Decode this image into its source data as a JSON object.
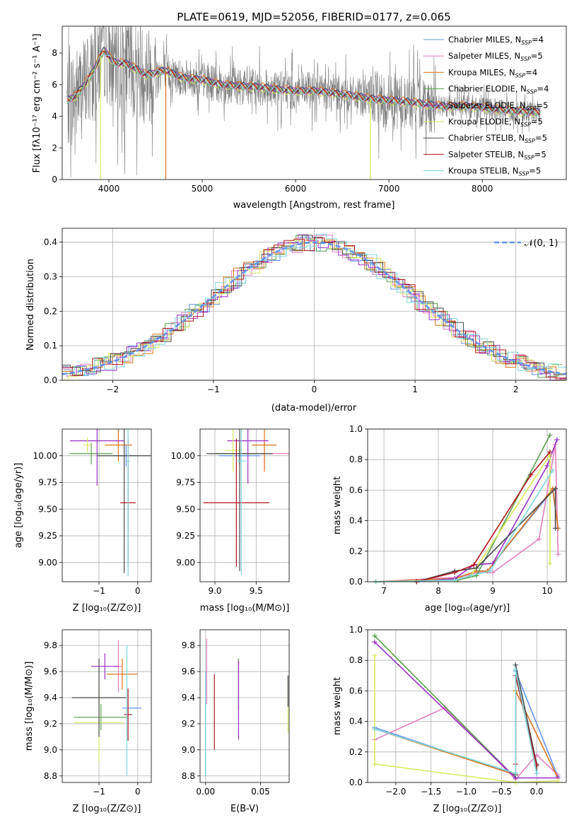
{
  "colors": {
    "c_blue": "#6495ed",
    "c_pink": "#e47fbd",
    "c_orange": "#d9751f",
    "c_green": "#5a9f4f",
    "c_purple": "#9b2fc9",
    "c_yellow": "#d8e85c",
    "c_dark": "#4a4a4a",
    "c_red": "#b0151d",
    "c_cyan": "#7fd7db",
    "data_gray": "#7f7f7f",
    "gauss": "#6495ed"
  },
  "legend_entries": [
    {
      "name": "Chabrier MILES",
      "nssp": "4",
      "color": "#6495ed"
    },
    {
      "name": "Salpeter MILES",
      "nssp": "5",
      "color": "#e47fbd"
    },
    {
      "name": "Kroupa MILES",
      "nssp": "4",
      "color": "#d9751f"
    },
    {
      "name": "Chabrier ELODIE",
      "nssp": "4",
      "color": "#5a9f4f"
    },
    {
      "name": "Salpeter ELODIE",
      "nssp": "5",
      "color": "#9b2fc9"
    },
    {
      "name": "Kroupa ELODIE",
      "nssp": "5",
      "color": "#d8e85c"
    },
    {
      "name": "Chabrier STELIB",
      "nssp": "5",
      "color": "#4a4a4a"
    },
    {
      "name": "Salpeter STELIB",
      "nssp": "5",
      "color": "#b0151d"
    },
    {
      "name": "Kroupa STELIB",
      "nssp": "5",
      "color": "#7fd7db"
    }
  ],
  "chart_data": [
    {
      "type": "line",
      "title": "PLATE=0619, MJD=52056, FIBERID=0177, z=0.065",
      "xlabel": "wavelength [Angstrom, rest frame]",
      "ylabel": "Flux [fλ10⁻¹⁷ erg cm⁻² s⁻¹ A⁻¹]",
      "xlim": [
        3500,
        8900
      ],
      "ylim": [
        0,
        9.7
      ],
      "xticks": [
        "4000",
        "5000",
        "6000",
        "7000",
        "8000"
      ],
      "yticks": [
        "0",
        "2",
        "4",
        "6",
        "8"
      ],
      "legend_loc": "upper right",
      "model_continuum": {
        "x": [
          3550,
          3650,
          3800,
          3950,
          4050,
          4200,
          4400,
          4600,
          4800,
          5000,
          5200,
          5400,
          5600,
          5800,
          6000,
          6200,
          6400,
          6600,
          6800,
          7000,
          7200,
          7400,
          7600,
          7800,
          8000,
          8200,
          8400,
          8600
        ],
        "y": [
          5.0,
          5.3,
          6.5,
          8.2,
          7.4,
          7.3,
          6.6,
          6.9,
          6.4,
          6.3,
          6.0,
          5.9,
          5.85,
          5.7,
          5.6,
          5.6,
          5.45,
          5.3,
          5.1,
          5.0,
          4.9,
          4.75,
          4.6,
          4.65,
          4.55,
          4.4,
          4.3,
          4.25
        ]
      }
    },
    {
      "type": "line",
      "title": "",
      "xlabel": "(data-model)/error",
      "ylabel": "Normed distribution",
      "xlim": [
        -2.5,
        2.5
      ],
      "ylim": [
        0,
        0.44
      ],
      "xticks": [
        "−2",
        "−1",
        "0",
        "1",
        "2"
      ],
      "yticks": [
        "0.0",
        "0.1",
        "0.2",
        "0.3",
        "0.4"
      ],
      "legend_label": "𝒩(0, 1)",
      "legend_loc": "upper right",
      "gaussian": {
        "mu": 0,
        "sigma": 1
      }
    },
    {
      "type": "scatter",
      "xlabel": "Z [log₁₀(Z/Z⊙)]",
      "ylabel": "age  [log₁₀(age/yr)]",
      "xlim": [
        -1.95,
        0.35
      ],
      "ylim": [
        8.82,
        10.25
      ],
      "xticks": [
        "−1",
        "0"
      ],
      "yticks": [
        "9.00",
        "9.25",
        "9.50",
        "9.75",
        "10.00"
      ],
      "points": [
        {
          "color": "#6495ed",
          "x": -0.3,
          "y": 10.0,
          "xerr": 0.4,
          "yerr": 0.1
        },
        {
          "color": "#e47fbd",
          "x": -0.5,
          "y": 10.14,
          "xerr": 0.1,
          "yerr": 0.03
        },
        {
          "color": "#d9751f",
          "x": -0.5,
          "y": 10.1,
          "xerr": 0.35,
          "yerr": 0.15
        },
        {
          "color": "#5a9f4f",
          "x": -1.2,
          "y": 10.02,
          "xerr": 0.55,
          "yerr": 0.1
        },
        {
          "color": "#9b2fc9",
          "x": -1.05,
          "y": 10.14,
          "xerr": 0.7,
          "yerr": 0.42
        },
        {
          "color": "#d8e85c",
          "x": -1.3,
          "y": 10.1,
          "xerr": 0.1,
          "yerr": 0.07
        },
        {
          "color": "#4a4a4a",
          "x": -0.35,
          "y": 10.0,
          "xerr": 0.7,
          "yerr": 1.1
        },
        {
          "color": "#b0151d",
          "x": -0.25,
          "y": 9.56,
          "xerr": 0.2,
          "yerr": 0.6
        },
        {
          "color": "#7fd7db",
          "x": -0.25,
          "y": 9.95,
          "xerr": 0.05,
          "yerr": 1.08
        }
      ]
    },
    {
      "type": "scatter",
      "xlabel": "mass [log₁₀(M/M⊙)]",
      "ylabel": "",
      "xlim": [
        8.82,
        9.9
      ],
      "ylim": [
        8.82,
        10.25
      ],
      "xticks": [
        "9.0",
        "9.5"
      ],
      "yticks": [
        "9.00",
        "9.25",
        "9.50",
        "9.75",
        "10.00"
      ],
      "points": [
        {
          "color": "#6495ed",
          "x": 9.3,
          "y": 10.0,
          "xerr": 0.25,
          "yerr": 0.1
        },
        {
          "color": "#e47fbd",
          "x": 9.6,
          "y": 10.02,
          "xerr": 0.35,
          "yerr": 0.14
        },
        {
          "color": "#d9751f",
          "x": 9.6,
          "y": 10.1,
          "xerr": 0.15,
          "yerr": 0.25
        },
        {
          "color": "#5a9f4f",
          "x": 9.3,
          "y": 10.02,
          "xerr": 0.3,
          "yerr": 0.1
        },
        {
          "color": "#9b2fc9",
          "x": 9.4,
          "y": 10.14,
          "xerr": 0.25,
          "yerr": 0.4
        },
        {
          "color": "#d8e85c",
          "x": 9.22,
          "y": 10.05,
          "xerr": 0.1,
          "yerr": 0.2
        },
        {
          "color": "#4a4a4a",
          "x": 9.3,
          "y": 10.02,
          "xerr": 0.4,
          "yerr": 1.1
        },
        {
          "color": "#b0151d",
          "x": 9.26,
          "y": 9.56,
          "xerr": 0.4,
          "yerr": 0.6
        },
        {
          "color": "#7fd7db",
          "x": 9.32,
          "y": 9.95,
          "xerr": 0.06,
          "yerr": 1.07
        }
      ]
    },
    {
      "type": "line",
      "xlabel": "age  [log₁₀(age/yr)]",
      "ylabel": "mass weight",
      "xlim": [
        6.7,
        10.35
      ],
      "ylim": [
        0,
        1.0
      ],
      "xticks": [
        "7",
        "8",
        "9",
        "10"
      ],
      "yticks": [
        "0.0",
        "0.2",
        "0.4",
        "0.6",
        "0.8",
        "1.0"
      ],
      "series": [
        {
          "color": "#6495ed",
          "x": [
            6.85,
            8.3,
            8.7,
            8.9,
            10.1,
            10.2
          ],
          "y": [
            0.0,
            0.02,
            0.07,
            0.07,
            0.6,
            0.35
          ]
        },
        {
          "color": "#e47fbd",
          "x": [
            6.85,
            8.4,
            8.7,
            9.0,
            9.85,
            10.15,
            10.2
          ],
          "y": [
            0.0,
            0.03,
            0.06,
            0.06,
            0.28,
            0.9,
            0.18
          ]
        },
        {
          "color": "#d9751f",
          "x": [
            6.85,
            8.3,
            8.7,
            8.9,
            10.1,
            10.2
          ],
          "y": [
            0.0,
            0.02,
            0.07,
            0.07,
            0.61,
            0.35
          ]
        },
        {
          "color": "#5a9f4f",
          "x": [
            6.85,
            8.35,
            8.7,
            10.05
          ],
          "y": [
            0.0,
            0.01,
            0.04,
            0.96
          ]
        },
        {
          "color": "#9b2fc9",
          "x": [
            7.6,
            8.3,
            8.65,
            9.0,
            10.0,
            10.18
          ],
          "y": [
            0.0,
            0.02,
            0.11,
            0.12,
            0.76,
            0.93
          ]
        },
        {
          "color": "#d8e85c",
          "x": [
            6.85,
            8.3,
            8.6,
            10.05,
            10.05
          ],
          "y": [
            0.0,
            0.01,
            0.04,
            0.83,
            0.12
          ]
        },
        {
          "color": "#4a4a4a",
          "x": [
            7.6,
            8.3,
            8.7,
            10.15,
            10.15
          ],
          "y": [
            0.0,
            0.07,
            0.09,
            0.61,
            0.35
          ]
        },
        {
          "color": "#b0151d",
          "x": [
            7.6,
            8.3,
            8.65,
            9.7,
            10.05
          ],
          "y": [
            0.0,
            0.06,
            0.11,
            0.7,
            0.85
          ]
        },
        {
          "color": "#7fd7db",
          "x": [
            6.85,
            8.3,
            8.6,
            8.95,
            10.1
          ],
          "y": [
            0.0,
            0.01,
            0.04,
            0.07,
            0.73
          ]
        }
      ]
    },
    {
      "type": "scatter",
      "xlabel": "Z [log₁₀(Z/Z⊙)]",
      "ylabel": "mass [log₁₀(M/M⊙)]",
      "xlim": [
        -1.95,
        0.35
      ],
      "ylim": [
        8.75,
        9.92
      ],
      "xticks": [
        "−1",
        "0"
      ],
      "yticks": [
        "8.8",
        "9.0",
        "9.2",
        "9.4",
        "9.6",
        "9.8"
      ],
      "points": [
        {
          "color": "#6495ed",
          "x": -0.15,
          "y": 9.32,
          "xerr": 0.25,
          "yerr": 0.0
        },
        {
          "color": "#e47fbd",
          "x": -0.5,
          "y": 9.64,
          "xerr": 0.1,
          "yerr": 0.2
        },
        {
          "color": "#d9751f",
          "x": -0.4,
          "y": 9.58,
          "xerr": 0.4,
          "yerr": 0.12
        },
        {
          "color": "#5a9f4f",
          "x": -0.95,
          "y": 9.25,
          "xerr": 0.7,
          "yerr": 0.1
        },
        {
          "color": "#9b2fc9",
          "x": -0.85,
          "y": 9.64,
          "xerr": 0.35,
          "yerr": 0.1
        },
        {
          "color": "#d8e85c",
          "x": -1.0,
          "y": 9.21,
          "xerr": 0.65,
          "yerr": 0.3
        },
        {
          "color": "#4a4a4a",
          "x": -1.0,
          "y": 9.4,
          "xerr": 0.7,
          "yerr": 0.3
        },
        {
          "color": "#b0151d",
          "x": -0.25,
          "y": 9.27,
          "xerr": 0.1,
          "yerr": 0.2
        },
        {
          "color": "#7fd7db",
          "x": -0.28,
          "y": 9.3,
          "xerr": 0.02,
          "yerr": 0.5
        }
      ]
    },
    {
      "type": "scatter",
      "xlabel": "E(B-V)",
      "ylabel": "",
      "xlim": [
        -0.005,
        0.076
      ],
      "ylim": [
        8.75,
        9.92
      ],
      "xticks": [
        "0.00",
        "0.05"
      ],
      "yticks": [
        "8.8",
        "9.0",
        "9.2",
        "9.4",
        "9.6",
        "9.8"
      ],
      "points": [
        {
          "color": "#6495ed",
          "x": 0.0,
          "y": 9.2,
          "xerr": 0,
          "yerr": 0.4
        },
        {
          "color": "#e47fbd",
          "x": 0.001,
          "y": 9.6,
          "xerr": 0,
          "yerr": 0.25
        },
        {
          "color": "#d9751f",
          "x": 0.03,
          "y": 9.5,
          "xerr": 0,
          "yerr": 0.2
        },
        {
          "color": "#5a9f4f",
          "x": 0.03,
          "y": 9.5,
          "xerr": 0,
          "yerr": 0.2
        },
        {
          "color": "#9b2fc9",
          "x": 0.03,
          "y": 9.38,
          "xerr": 0,
          "yerr": 0.3
        },
        {
          "color": "#d8e85c",
          "x": 0.075,
          "y": 9.35,
          "xerr": 0,
          "yerr": 0.22
        },
        {
          "color": "#4a4a4a",
          "x": 0.075,
          "y": 9.45,
          "xerr": 0,
          "yerr": 0.12
        },
        {
          "color": "#b0151d",
          "x": 0.008,
          "y": 9.29,
          "xerr": 0,
          "yerr": 0.29
        },
        {
          "color": "#7fd7db",
          "x": 0.0,
          "y": 9.2,
          "xerr": 0,
          "yerr": 0.4
        }
      ]
    },
    {
      "type": "line",
      "xlabel": "Z [log₁₀(Z/Z⊙)]",
      "ylabel": "mass weight",
      "xlim": [
        -2.4,
        0.42
      ],
      "ylim": [
        0,
        1.0
      ],
      "xticks": [
        "−2.0",
        "−1.5",
        "−1.0",
        "−0.5",
        "0.0"
      ],
      "yticks": [
        "0.0",
        "0.2",
        "0.4",
        "0.6",
        "0.8",
        "1.0"
      ],
      "series": [
        {
          "color": "#6495ed",
          "x": [
            -2.3,
            -0.3,
            -0.3,
            0.3
          ],
          "y": [
            0.36,
            0.05,
            0.73,
            0.04
          ]
        },
        {
          "color": "#e47fbd",
          "x": [
            -2.3,
            -1.3,
            -0.3,
            0.0,
            0.3
          ],
          "y": [
            0.28,
            0.49,
            0.02,
            0.18,
            0.05
          ]
        },
        {
          "color": "#d9751f",
          "x": [
            -2.3,
            -0.3,
            -0.3,
            0.3
          ],
          "y": [
            0.35,
            0.05,
            0.6,
            0.03
          ]
        },
        {
          "color": "#5a9f4f",
          "x": [
            -2.3,
            -0.3
          ],
          "y": [
            0.96,
            0.03
          ]
        },
        {
          "color": "#9b2fc9",
          "x": [
            -2.3,
            -0.3,
            0.3
          ],
          "y": [
            0.92,
            0.03,
            0.03
          ]
        },
        {
          "color": "#d8e85c",
          "x": [
            -2.3,
            -2.3,
            -0.3,
            0.3
          ],
          "y": [
            0.83,
            0.12,
            0.0,
            0.01
          ]
        },
        {
          "color": "#4a4a4a",
          "x": [
            -0.3,
            -0.3,
            0.0,
            0.0
          ],
          "y": [
            0.05,
            0.77,
            0.12,
            0.06
          ]
        },
        {
          "color": "#b0151d",
          "x": [
            -0.3,
            -0.3,
            0.0
          ],
          "y": [
            0.12,
            0.7,
            0.11
          ]
        },
        {
          "color": "#7fd7db",
          "x": [
            -2.3,
            -0.3,
            -0.3,
            0.0
          ],
          "y": [
            0.35,
            0.06,
            0.74,
            0.06
          ]
        }
      ]
    }
  ]
}
